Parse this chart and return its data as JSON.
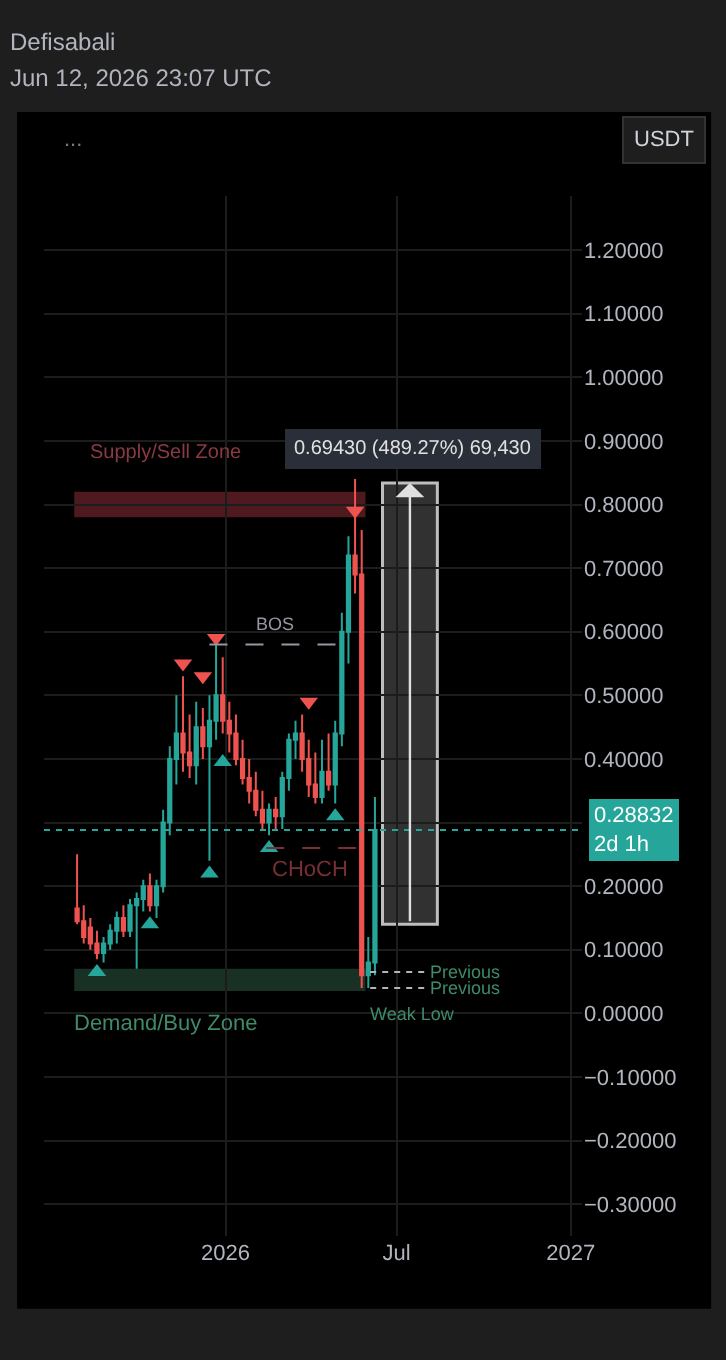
{
  "chart_data": {
    "type": "candlestick",
    "title": "Defisabali",
    "subtitle": "Jun 12, 2026 23:07 UTC",
    "x": [
      "2025-07-28",
      "2025-08-04",
      "2025-08-11",
      "2025-08-18",
      "2025-08-25",
      "2025-09-01",
      "2025-09-08",
      "2025-09-15",
      "2025-09-22",
      "2025-09-29",
      "2025-10-06",
      "2025-10-13",
      "2025-10-20",
      "2025-10-27",
      "2025-11-03",
      "2025-11-10",
      "2025-11-17",
      "2025-11-24",
      "2025-12-01",
      "2025-12-08",
      "2025-12-15",
      "2025-12-22",
      "2025-12-29",
      "2026-01-05",
      "2026-01-12",
      "2026-01-19",
      "2026-01-26",
      "2026-02-02",
      "2026-02-09",
      "2026-02-16",
      "2026-02-23",
      "2026-03-02",
      "2026-03-09",
      "2026-03-16",
      "2026-03-23",
      "2026-03-30",
      "2026-04-06",
      "2026-04-13",
      "2026-04-20",
      "2026-04-27",
      "2026-05-04",
      "2026-05-11",
      "2026-05-18",
      "2026-05-25",
      "2026-06-01",
      "2026-06-08"
    ],
    "ohlc": [
      [
        0.165,
        0.25,
        0.14,
        0.145
      ],
      [
        0.145,
        0.17,
        0.11,
        0.12
      ],
      [
        0.135,
        0.15,
        0.1,
        0.11
      ],
      [
        0.11,
        0.13,
        0.085,
        0.095
      ],
      [
        0.095,
        0.12,
        0.08,
        0.11
      ],
      [
        0.11,
        0.14,
        0.1,
        0.13
      ],
      [
        0.13,
        0.16,
        0.11,
        0.15
      ],
      [
        0.15,
        0.17,
        0.12,
        0.13
      ],
      [
        0.13,
        0.18,
        0.12,
        0.17
      ],
      [
        0.17,
        0.19,
        0.07,
        0.18
      ],
      [
        0.18,
        0.21,
        0.16,
        0.2
      ],
      [
        0.2,
        0.22,
        0.16,
        0.17
      ],
      [
        0.17,
        0.21,
        0.15,
        0.2
      ],
      [
        0.2,
        0.32,
        0.19,
        0.3
      ],
      [
        0.3,
        0.42,
        0.28,
        0.4
      ],
      [
        0.4,
        0.5,
        0.36,
        0.44
      ],
      [
        0.44,
        0.53,
        0.38,
        0.41
      ],
      [
        0.41,
        0.47,
        0.37,
        0.39
      ],
      [
        0.39,
        0.49,
        0.36,
        0.45
      ],
      [
        0.45,
        0.48,
        0.4,
        0.42
      ],
      [
        0.42,
        0.5,
        0.24,
        0.46
      ],
      [
        0.46,
        0.58,
        0.43,
        0.5
      ],
      [
        0.5,
        0.56,
        0.44,
        0.46
      ],
      [
        0.46,
        0.49,
        0.41,
        0.44
      ],
      [
        0.44,
        0.47,
        0.39,
        0.4
      ],
      [
        0.4,
        0.43,
        0.36,
        0.37
      ],
      [
        0.37,
        0.4,
        0.33,
        0.35
      ],
      [
        0.35,
        0.38,
        0.31,
        0.32
      ],
      [
        0.32,
        0.35,
        0.29,
        0.3
      ],
      [
        0.3,
        0.33,
        0.28,
        0.32
      ],
      [
        0.32,
        0.34,
        0.29,
        0.31
      ],
      [
        0.31,
        0.38,
        0.29,
        0.37
      ],
      [
        0.37,
        0.44,
        0.35,
        0.43
      ],
      [
        0.43,
        0.46,
        0.4,
        0.44
      ],
      [
        0.44,
        0.47,
        0.38,
        0.4
      ],
      [
        0.4,
        0.43,
        0.34,
        0.36
      ],
      [
        0.36,
        0.41,
        0.33,
        0.34
      ],
      [
        0.34,
        0.43,
        0.33,
        0.38
      ],
      [
        0.38,
        0.44,
        0.35,
        0.36
      ],
      [
        0.36,
        0.46,
        0.33,
        0.44
      ],
      [
        0.44,
        0.63,
        0.42,
        0.6
      ],
      [
        0.6,
        0.75,
        0.55,
        0.72
      ],
      [
        0.72,
        0.84,
        0.66,
        0.69
      ],
      [
        0.69,
        0.76,
        0.04,
        0.06
      ],
      [
        0.06,
        0.12,
        0.04,
        0.08
      ],
      [
        0.08,
        0.34,
        0.06,
        0.28832
      ]
    ],
    "colors": [
      "#ef5350",
      "#ef5350",
      "#ef5350",
      "#ef5350",
      "#26a69a",
      "#26a69a",
      "#26a69a",
      "#ef5350",
      "#26a69a",
      "#26a69a",
      "#26a69a",
      "#ef5350",
      "#26a69a",
      "#26a69a",
      "#26a69a",
      "#26a69a",
      "#ef5350",
      "#ef5350",
      "#26a69a",
      "#ef5350",
      "#26a69a",
      "#26a69a",
      "#ef5350",
      "#ef5350",
      "#ef5350",
      "#ef5350",
      "#ef5350",
      "#ef5350",
      "#ef5350",
      "#26a69a",
      "#ef5350",
      "#26a69a",
      "#26a69a",
      "#26a69a",
      "#ef5350",
      "#ef5350",
      "#ef5350",
      "#26a69a",
      "#ef5350",
      "#26a69a",
      "#26a69a",
      "#26a69a",
      "#ef5350",
      "#ef5350",
      "#26a69a",
      "#26a69a"
    ],
    "series": [
      {
        "type": "scatter",
        "marker": "triangle",
        "color": "#26a69a",
        "x": [
          "2025-08-18",
          "2025-10-13",
          "2025-12-15",
          "2025-12-29",
          "2026-02-16",
          "2026-04-27"
        ],
        "values": [
          0.065,
          0.14,
          0.22,
          0.395,
          0.26,
          0.31
        ]
      },
      {
        "type": "scatter",
        "marker": "triangle",
        "color": "#ef5350",
        "x": [
          "2025-11-17",
          "2025-12-08",
          "2025-12-22",
          "2026-03-30",
          "2026-05-18"
        ],
        "values": [
          0.55,
          0.53,
          0.59,
          0.49,
          0.79
        ]
      }
    ],
    "bands": [
      {
        "axis": "y",
        "from": 0.78,
        "to": 0.82,
        "label": "Supply/Sell Zone",
        "color": "#5c1f24"
      },
      {
        "axis": "y",
        "from": 0.035,
        "to": 0.07,
        "label": "Demand/Buy Zone",
        "color": "#1d3a2c"
      },
      {
        "axis": "y",
        "from": 0.14,
        "to": 0.834,
        "label": "0.69430 (489.27%) 69,430",
        "color": "#3a3a3a"
      }
    ],
    "ref_lines": [
      {
        "axis": "y",
        "value": 0.58,
        "label": "BOS",
        "line_style": "dashed",
        "color": "#9598a1"
      },
      {
        "axis": "y",
        "value": 0.26,
        "label": "CHoCH",
        "line_style": "dashed",
        "color": "#7a2e35"
      },
      {
        "axis": "y",
        "value": 0.065,
        "label": "Previous",
        "line_style": "dotted",
        "color": "#b2b5be"
      },
      {
        "axis": "y",
        "value": 0.04,
        "label": "Previous",
        "line_style": "dotted",
        "color": "#b2b5be"
      },
      {
        "axis": "y",
        "value": 0.28832,
        "label": "0.28832\n2d 1h",
        "line_style": "dotted",
        "color": "#26a69a"
      }
    ],
    "annotations": [
      "...",
      "USDT",
      "Weak Low"
    ],
    "xlim": [
      "2025-06-23",
      "2027-01-13"
    ],
    "xticks": [
      {
        "value": "2026-01-01",
        "label": "2026"
      },
      {
        "value": "2026-07-01",
        "label": "Jul"
      },
      {
        "value": "2027-01-01",
        "label": "2027"
      }
    ],
    "ylim": [
      -0.35,
      1.285
    ],
    "yticks": [
      {
        "value": -0.3,
        "label": "−0.30000"
      },
      {
        "value": -0.2,
        "label": "−0.20000"
      },
      {
        "value": -0.1,
        "label": "−0.10000"
      },
      {
        "value": 0.0,
        "label": "0.00000"
      },
      {
        "value": 0.1,
        "label": "0.10000"
      },
      {
        "value": 0.2,
        "label": "0.20000"
      },
      {
        "value": 0.3,
        "label": null
      },
      {
        "value": 0.4,
        "label": "0.40000"
      },
      {
        "value": 0.5,
        "label": "0.50000"
      },
      {
        "value": 0.6,
        "label": "0.60000"
      },
      {
        "value": 0.7,
        "label": "0.70000"
      },
      {
        "value": 0.8,
        "label": "0.80000"
      },
      {
        "value": 0.9,
        "label": "0.90000"
      },
      {
        "value": 1.0,
        "label": "1.00000"
      },
      {
        "value": 1.1,
        "label": "1.10000"
      },
      {
        "value": 1.2,
        "label": "1.20000"
      }
    ],
    "grid": true
  }
}
